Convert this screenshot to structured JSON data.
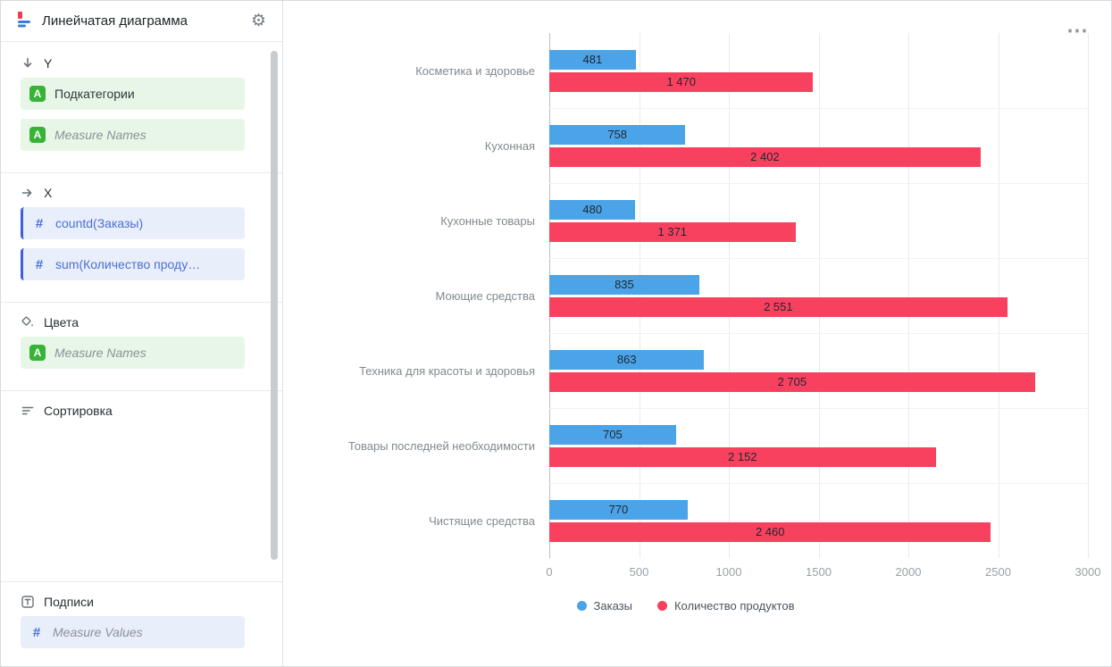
{
  "icons": {
    "dimension_badge": "A",
    "measure_badge": "#",
    "gear": "⚙",
    "more_menu": "⋯"
  },
  "header": {
    "title": "Линейчатая диаграмма"
  },
  "sidebar": {
    "y": {
      "label": "Y",
      "fields": [
        {
          "label": "Подкатегории",
          "italic": false
        },
        {
          "label": "Measure Names",
          "italic": true
        }
      ]
    },
    "x": {
      "label": "X",
      "fields": [
        {
          "label": "countd(Заказы)",
          "italic": false
        },
        {
          "label": "sum(Количество проду…",
          "italic": false
        }
      ]
    },
    "colors": {
      "label": "Цвета",
      "fields": [
        {
          "label": "Measure Names",
          "italic": true
        }
      ]
    },
    "sort": {
      "label": "Сортировка"
    },
    "labels": {
      "label": "Подписи",
      "fields": [
        {
          "label": "Measure Values",
          "italic": true
        }
      ]
    }
  },
  "chart_data": {
    "type": "bar",
    "orientation": "horizontal",
    "title": "",
    "categories": [
      "Косметика и здоровье",
      "Кухонная",
      "Кухонные товары",
      "Моющие средства",
      "Техника для красоты и здоровья",
      "Товары последней необходимости",
      "Чистящие средства"
    ],
    "series": [
      {
        "name": "Заказы",
        "color": "#4ba3e8",
        "values": [
          481,
          758,
          480,
          835,
          863,
          705,
          770
        ],
        "labels": [
          "481",
          "758",
          "480",
          "835",
          "863",
          "705",
          "770"
        ]
      },
      {
        "name": "Количество продуктов",
        "color": "#f8415f",
        "values": [
          1470,
          2402,
          1371,
          2551,
          2705,
          2152,
          2460
        ],
        "labels": [
          "1 470",
          "2 402",
          "1 371",
          "2 551",
          "2 705",
          "2 152",
          "2 460"
        ]
      }
    ],
    "xlim": [
      0,
      3000
    ],
    "xticks": [
      0,
      500,
      1000,
      1500,
      2000,
      2500,
      3000
    ],
    "grid": true,
    "legend_position": "bottom"
  }
}
